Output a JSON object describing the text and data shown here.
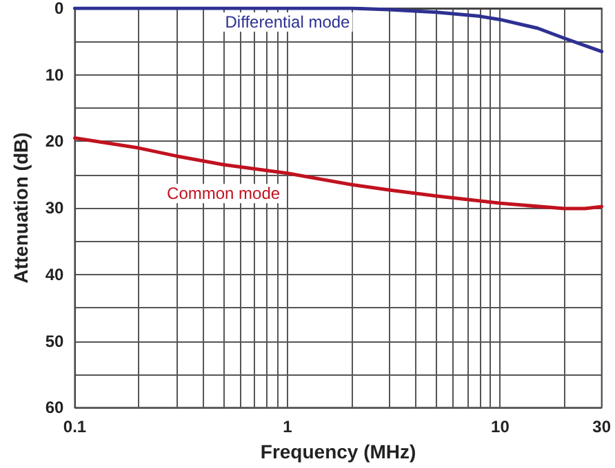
{
  "chart_data": {
    "type": "line",
    "xlabel": "Frequency (MHz)",
    "ylabel": "Attenuation (dB)",
    "log": "x",
    "xlim": [
      0.1,
      30
    ],
    "xticks": [
      0.1,
      {
        "value": 0.2,
        "label": null
      },
      {
        "value": 0.3,
        "label": null
      },
      {
        "value": 0.4,
        "label": null
      },
      {
        "value": 0.5,
        "label": null
      },
      {
        "value": 0.6,
        "label": null
      },
      {
        "value": 0.7,
        "label": null
      },
      {
        "value": 0.8,
        "label": null
      },
      {
        "value": 0.9,
        "label": null
      },
      1,
      {
        "value": 2,
        "label": null
      },
      {
        "value": 3,
        "label": null
      },
      {
        "value": 4,
        "label": null
      },
      {
        "value": 5,
        "label": null
      },
      {
        "value": 6,
        "label": null
      },
      {
        "value": 7,
        "label": null
      },
      {
        "value": 8,
        "label": null
      },
      {
        "value": 9,
        "label": null
      },
      10,
      {
        "value": 20,
        "label": null
      },
      30
    ],
    "ylim": [
      60,
      0
    ],
    "yticks": [
      0,
      {
        "value": 5,
        "label": null
      },
      10,
      {
        "value": 15,
        "label": null
      },
      20,
      {
        "value": 25,
        "label": null
      },
      30,
      {
        "value": 35,
        "label": null
      },
      40,
      {
        "value": 45,
        "label": null
      },
      50,
      {
        "value": 55,
        "label": null
      },
      60
    ],
    "grid": true,
    "legend": false,
    "marker": "none",
    "line_style": "solid",
    "series": [
      {
        "name": "Differential mode",
        "color": "#2e3192",
        "x": [
          0.1,
          0.5,
          1,
          2,
          3,
          5,
          8,
          10,
          15,
          20,
          30
        ],
        "values": [
          0,
          0,
          0,
          0,
          0.2,
          0.6,
          1.2,
          1.7,
          3,
          4.5,
          6.5
        ]
      },
      {
        "name": "Common mode",
        "color": "#c1121f",
        "x": [
          0.1,
          0.2,
          0.3,
          0.5,
          1,
          2,
          3,
          5,
          10,
          20,
          25,
          30
        ],
        "values": [
          19.5,
          21,
          22.2,
          23.5,
          24.8,
          26.5,
          27.3,
          28.2,
          29.3,
          30.1,
          30.1,
          29.8
        ]
      }
    ]
  }
}
